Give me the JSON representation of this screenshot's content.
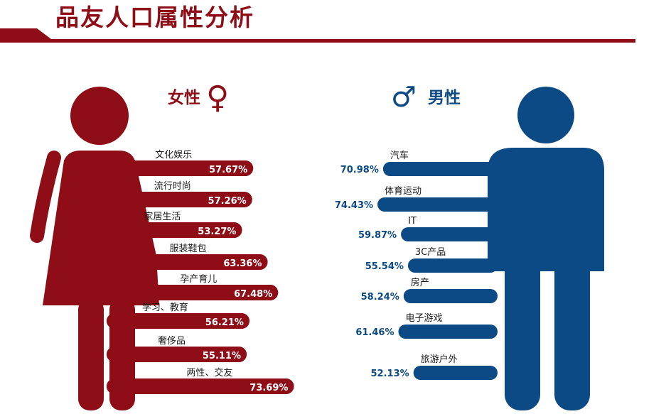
{
  "page": {
    "title": "品友人口属性分析"
  },
  "colors": {
    "female": "#8f0d16",
    "male": "#0c4a85",
    "text": "#1a1a1a"
  },
  "chart_data": [
    {
      "type": "bar",
      "title": "女性",
      "symbol": "♀",
      "categories": [
        "文化娱乐",
        "流行时尚",
        "家居生活",
        "服装鞋包",
        "孕产育儿",
        "学习、教育",
        "奢侈品",
        "两性、交友"
      ],
      "values": [
        57.67,
        57.26,
        53.27,
        63.36,
        67.48,
        56.21,
        55.11,
        73.69
      ],
      "value_labels": [
        "57.67%",
        "57.26%",
        "53.27%",
        "63.36%",
        "67.48%",
        "56.21%",
        "55.11%",
        "73.69%"
      ],
      "unit": "%",
      "orientation": "horizontal",
      "direction": "left-to-right"
    },
    {
      "type": "bar",
      "title": "男性",
      "symbol": "♂",
      "categories": [
        "汽车",
        "体育运动",
        "IT",
        "3C产品",
        "房产",
        "电子游戏",
        "旅游户外"
      ],
      "values": [
        70.98,
        74.43,
        59.87,
        55.54,
        58.24,
        61.46,
        52.13
      ],
      "value_labels": [
        "70.98%",
        "74.43%",
        "59.87%",
        "55.54%",
        "58.24%",
        "61.46%",
        "52.13%"
      ],
      "unit": "%",
      "orientation": "horizontal",
      "direction": "right-to-left"
    }
  ]
}
